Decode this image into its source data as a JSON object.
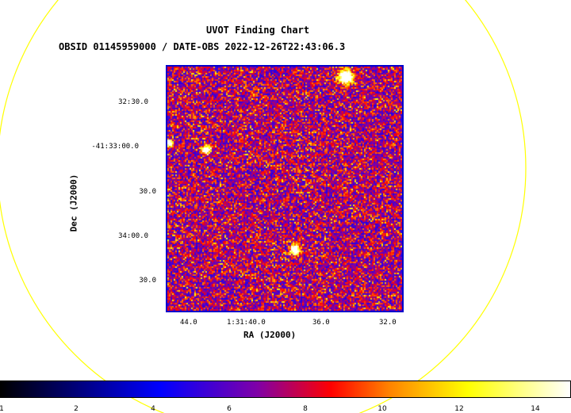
{
  "chart_data": {
    "type": "heatmap",
    "title": "UVOT Finding Chart",
    "subtitle": "OBSID 01145959000 / DATE-OBS 2022-12-26T22:43:06.3",
    "xlabel": "RA (J2000)",
    "ylabel": "Dec (J2000)",
    "x_ticks": [
      "44.0",
      "1:31:40.0",
      "36.0",
      "32.0"
    ],
    "y_ticks": [
      "32:30.0",
      "-41:33:00.0",
      "30.0",
      "34:00.0",
      "30.0"
    ],
    "colorbar": {
      "ticks": [
        "2",
        "4",
        "6",
        "8",
        "10",
        "12",
        "14"
      ],
      "min_label": "1",
      "range": [
        1,
        15
      ],
      "colormap": "heat (black-blue-purple-red-orange-yellow-white)"
    },
    "grid": false,
    "sources_note": "bright point sources visible in image",
    "overlay_circle_color": "#ffff00",
    "frame_color": "#0000cc"
  }
}
